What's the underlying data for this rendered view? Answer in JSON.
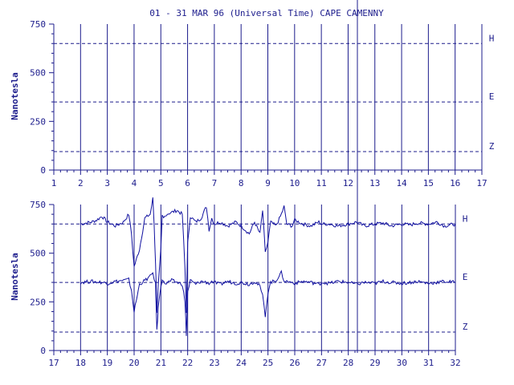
{
  "chart_data": {
    "title": "01 - 31 MAR 96 (Universal Time) CAPE CAMENNY",
    "type": "line",
    "ylabel": "Nanotesla",
    "colors": {
      "axis": "#1c1c8c",
      "data": "#1010a0",
      "background": "#ffffff"
    },
    "panels": [
      {
        "xlim": [
          1,
          17
        ],
        "ylim": [
          0,
          750
        ],
        "x_ticks": [
          "1",
          "2",
          "3",
          "4",
          "5",
          "6",
          "7",
          "8",
          "9",
          "10",
          "11",
          "12",
          "13",
          "14",
          "15",
          "16",
          "17"
        ],
        "y_ticks": [
          "0",
          "250",
          "500",
          "750"
        ],
        "y_tick_values": [
          0,
          250,
          500,
          750
        ],
        "baselines": [
          {
            "label": "H",
            "value": 650
          },
          {
            "label": "E",
            "value": 350
          },
          {
            "label": "Z",
            "value": 95
          }
        ],
        "series": []
      },
      {
        "xlim": [
          17,
          32
        ],
        "ylim": [
          0,
          750
        ],
        "x_ticks": [
          "17",
          "18",
          "19",
          "20",
          "21",
          "22",
          "23",
          "24",
          "25",
          "26",
          "27",
          "28",
          "29",
          "30",
          "31",
          "32"
        ],
        "y_ticks": [
          "0",
          "250",
          "500",
          "750"
        ],
        "y_tick_values": [
          0,
          250,
          500,
          750
        ],
        "baselines": [
          {
            "label": "H",
            "value": 650
          },
          {
            "label": "E",
            "value": 350
          },
          {
            "label": "Z",
            "value": 95
          }
        ],
        "series": [
          {
            "component": "H",
            "x": [
              18.0,
              18.4,
              18.6,
              18.8,
              19.0,
              19.3,
              19.6,
              19.8,
              19.9,
              20.0,
              20.2,
              20.4,
              20.6,
              20.7,
              20.75,
              20.8,
              20.85,
              20.9,
              21.0,
              21.05,
              21.1,
              21.2,
              21.4,
              21.6,
              21.8,
              21.9,
              21.95,
              22.0,
              22.1,
              22.3,
              22.5,
              22.7,
              22.8,
              22.9,
              23.0,
              23.2,
              23.5,
              23.8,
              24.0,
              24.3,
              24.5,
              24.7,
              24.8,
              24.9,
              25.0,
              25.1,
              25.3,
              25.5,
              25.6,
              25.7,
              25.9,
              26.0,
              26.3,
              26.6,
              26.9,
              27.0,
              27.3,
              27.6,
              28.0,
              28.3,
              28.6,
              29.0,
              29.3,
              29.6,
              30.0,
              30.3,
              30.6,
              31.0,
              31.3,
              31.6,
              32.0
            ],
            "y": [
              650,
              660,
              670,
              690,
              660,
              640,
              660,
              700,
              600,
              430,
              520,
              680,
              700,
              780,
              640,
              450,
              200,
              330,
              520,
              690,
              680,
              700,
              710,
              720,
              700,
              420,
              200,
              550,
              690,
              660,
              680,
              740,
              620,
              680,
              650,
              660,
              640,
              660,
              640,
              600,
              660,
              600,
              720,
              500,
              560,
              660,
              640,
              700,
              740,
              650,
              640,
              670,
              650,
              640,
              660,
              650,
              650,
              640,
              650,
              660,
              640,
              650,
              655,
              640,
              650,
              645,
              655,
              650,
              660,
              640,
              650
            ]
          },
          {
            "component": "E",
            "x": [
              18.0,
              18.4,
              18.8,
              19.0,
              19.3,
              19.6,
              19.8,
              19.9,
              20.0,
              20.2,
              20.4,
              20.6,
              20.7,
              20.8,
              20.85,
              20.9,
              21.0,
              21.05,
              21.1,
              21.2,
              21.4,
              21.6,
              21.8,
              21.9,
              21.95,
              22.0,
              22.1,
              22.3,
              22.5,
              22.7,
              22.8,
              22.9,
              23.0,
              23.2,
              23.5,
              23.8,
              24.0,
              24.3,
              24.5,
              24.7,
              24.8,
              24.9,
              25.0,
              25.1,
              25.3,
              25.5,
              25.6,
              25.7,
              25.9,
              26.0,
              26.3,
              26.6,
              26.9,
              27.0,
              27.3,
              27.6,
              28.0,
              28.3,
              28.6,
              29.0,
              29.3,
              29.6,
              30.0,
              30.3,
              30.6,
              31.0,
              31.3,
              31.6,
              32.0
            ],
            "y": [
              350,
              355,
              350,
              345,
              355,
              360,
              365,
              310,
              200,
              340,
              360,
              380,
              400,
              340,
              100,
              220,
              330,
              370,
              350,
              345,
              360,
              350,
              340,
              250,
              80,
              300,
              360,
              340,
              355,
              350,
              345,
              355,
              350,
              340,
              355,
              345,
              350,
              340,
              355,
              330,
              280,
              180,
              300,
              350,
              360,
              400,
              360,
              355,
              350,
              345,
              355,
              350,
              340,
              350,
              345,
              355,
              350,
              340,
              350,
              345,
              355,
              350,
              345,
              350,
              355,
              345,
              350,
              355,
              350
            ]
          }
        ]
      }
    ]
  }
}
